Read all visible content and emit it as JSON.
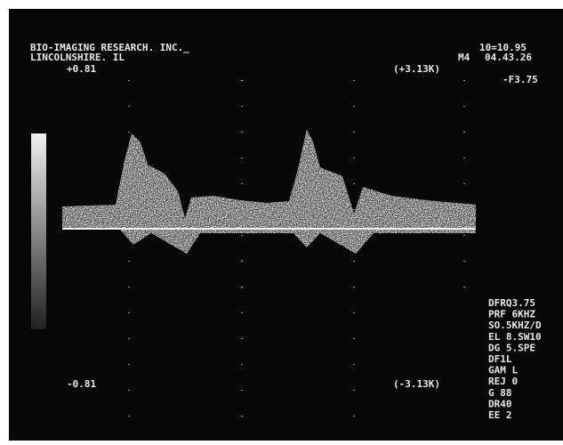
{
  "header": {
    "company": "BIO-IMAGING RESEARCH. INC._",
    "location": "LINCOLNSHIRE. IL"
  },
  "top_right": {
    "mode": "M4",
    "time": "04.43.26",
    "id": "10=10.95",
    "freq": "-F3.75"
  },
  "scale": {
    "top_velocity": "+0.81",
    "bottom_velocity": "-0.81",
    "top_shift": "(+3.13K)",
    "bottom_shift": "(-3.13K)"
  },
  "settings": [
    "DFRQ3.75",
    "PRF  6KHZ",
    "SO.5KHZ/D",
    "EL 8.SW10",
    "DG 5.SPE",
    "DF1L",
    "GAM L",
    "REJ 0",
    "G 88",
    "DR40",
    "EE 2"
  ]
}
